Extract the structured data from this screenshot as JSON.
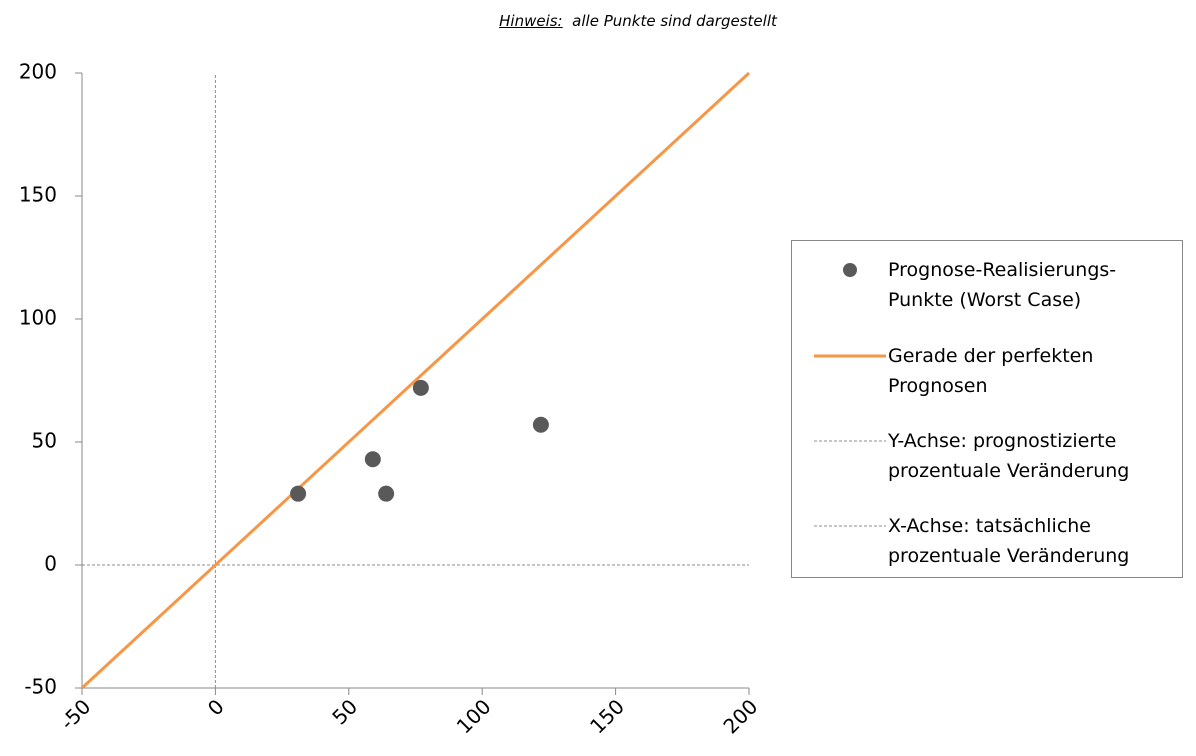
{
  "chart_data": {
    "type": "scatter",
    "title_prefix": "Hinweis:",
    "title": "alle Punkte sind dargestellt",
    "xlim": [
      -50,
      200
    ],
    "xticks": [
      -50,
      0,
      50,
      100,
      150,
      200
    ],
    "ylim": [
      -50,
      200
    ],
    "yticks": [
      -50,
      0,
      50,
      100,
      150,
      200
    ],
    "legend": "right",
    "series": [
      {
        "name": "Prognose-Realisierungs-Punkte (Worst Case)",
        "mode": "markers",
        "color": "#595959",
        "x": [
          31,
          59,
          64,
          77,
          122
        ],
        "y": [
          29,
          43,
          29,
          72,
          57
        ]
      },
      {
        "name": "Gerade der perfekten Prognosen",
        "mode": "line",
        "color": "#f79646",
        "x": [
          -50,
          200
        ],
        "y": [
          -50,
          200
        ]
      },
      {
        "name": "Y-Achse: prognostizierte prozentuale Veränderung",
        "mode": "dashed",
        "color": "#8c8c8c",
        "x": [
          0,
          0
        ],
        "y": [
          -50,
          200
        ]
      },
      {
        "name": "X-Achse: tatsächliche prozentuale Veränderung",
        "mode": "dashed",
        "color": "#8c8c8c",
        "x": [
          -50,
          200
        ],
        "y": [
          0,
          0
        ]
      }
    ]
  }
}
